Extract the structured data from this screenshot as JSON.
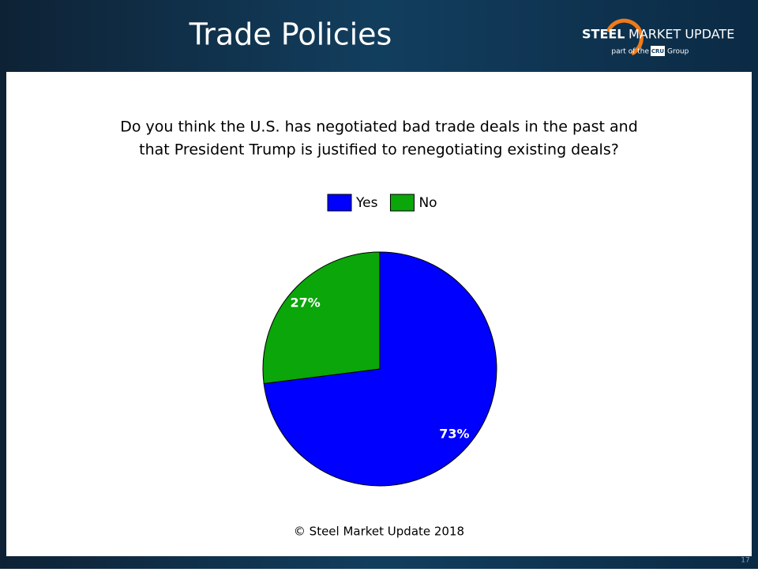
{
  "header": {
    "title": "Trade Policies",
    "logo": {
      "brand_bold": "STEEL",
      "brand_rest": "MARKET UPDATE",
      "tagline_pre": "part of the",
      "tagline_mark": "CRU",
      "tagline_post": "Group"
    }
  },
  "chart_data": {
    "type": "pie",
    "title": [
      "Do you think the U.S. has negotiated bad trade deals in the past and",
      "that President Trump is justified to renegotiating existing deals?"
    ],
    "categories": [
      "Yes",
      "No"
    ],
    "values": [
      73,
      27
    ],
    "value_labels": [
      "73%",
      "27%"
    ],
    "colors": [
      "#0000ff",
      "#0aa60a"
    ],
    "legend": "top"
  },
  "footer": "© Steel Market Update 2018",
  "page_number": "17"
}
